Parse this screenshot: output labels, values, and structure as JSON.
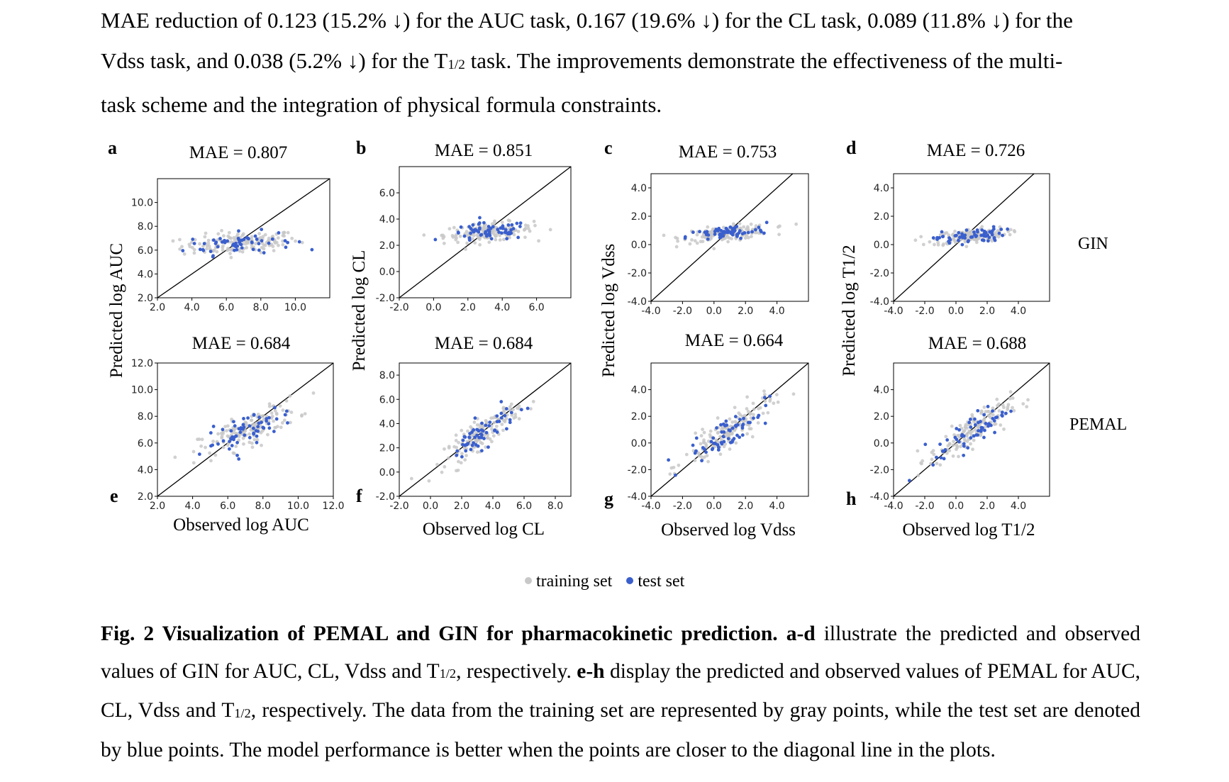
{
  "intro": {
    "l1": "MAE reduction of 0.123 (15.2% ↓) for the AUC task, 0.167 (19.6% ↓) for the CL task, 0.089 (11.8% ↓) for the",
    "l2a": "Vdss task, and 0.038 (5.2% ↓) for the T",
    "l2sub": "1/2",
    "l2b": " task. The improvements demonstrate the effectiveness of the multi-",
    "l3": "task scheme and the integration of physical formula constraints."
  },
  "legend": {
    "training": "training set",
    "test": "test set",
    "training_color": "#c8c8c8",
    "test_color": "#3a5fcd"
  },
  "row_labels": {
    "top": "GIN",
    "bottom": "PEMAL"
  },
  "caption": {
    "b1": "Fig. 2 Visualization of PEMAL and GIN for pharmacokinetic prediction.",
    "b2": "a-d",
    "t1": " illustrate the predicted and observed values of GIN for AUC, CL, Vdss and T",
    "sub1": "1/2",
    "t2": ", respectively. ",
    "b3": "e-h",
    "t3": " display the predicted and observed values of PEMAL for AUC, CL, Vdss and T",
    "sub2": "1/2",
    "t4": ", respectively. The data from the training set are represented by gray points, while the test set are denoted by blue points. The model performance is better when the points are closer to the diagonal line in the plots."
  },
  "chart_data": [
    {
      "type": "scatter",
      "panel": "a",
      "model": "GIN",
      "title": "MAE = 0.807",
      "xlabel": "",
      "ylabel": "Predicted log AUC",
      "xlim": [
        2.0,
        12.0
      ],
      "ylim": [
        2.0,
        12.0
      ],
      "xticks": [
        "2.0",
        "4.0",
        "6.0",
        "8.0",
        "10.0"
      ],
      "yticks": [
        "2.0",
        "4.0",
        "6.0",
        "8.0",
        "10.0"
      ],
      "center": [
        6.8,
        6.6
      ],
      "spread": [
        1.7,
        0.45
      ],
      "slope": 0.08
    },
    {
      "type": "scatter",
      "panel": "b",
      "model": "GIN",
      "title": "MAE = 0.851",
      "xlabel": "",
      "ylabel": "Predicted log CL",
      "xlim": [
        -2.0,
        8.0
      ],
      "ylim": [
        -2.0,
        8.0
      ],
      "xticks": [
        "-2.0",
        "0.0",
        "2.0",
        "4.0",
        "6.0"
      ],
      "yticks": [
        "-2.0",
        "0.0",
        "2.0",
        "4.0",
        "6.0"
      ],
      "center": [
        3.2,
        3.0
      ],
      "spread": [
        1.3,
        0.35
      ],
      "slope": 0.08
    },
    {
      "type": "scatter",
      "panel": "c",
      "model": "GIN",
      "title": "MAE = 0.753",
      "xlabel": "",
      "ylabel": "Predicted log Vdss",
      "xlim": [
        -4.0,
        6.0
      ],
      "ylim": [
        -4.0,
        5.0
      ],
      "xticks": [
        "-4.0",
        "-2.0",
        "0.0",
        "2.0",
        "4.0"
      ],
      "yticks": [
        "-4.0",
        "-2.0",
        "0.0",
        "2.0",
        "4.0"
      ],
      "center": [
        0.8,
        0.8
      ],
      "spread": [
        1.4,
        0.25
      ],
      "slope": 0.1
    },
    {
      "type": "scatter",
      "panel": "d",
      "model": "GIN",
      "title": "MAE = 0.726",
      "xlabel": "",
      "ylabel": "Predicted log T1/2",
      "xlim": [
        -4.0,
        6.0
      ],
      "ylim": [
        -4.0,
        5.0
      ],
      "xticks": [
        "-4.0",
        "-2.0",
        "0.0",
        "2.0",
        "4.0"
      ],
      "yticks": [
        "-4.0",
        "-2.0",
        "0.0",
        "2.0",
        "4.0"
      ],
      "center": [
        0.9,
        0.6
      ],
      "spread": [
        1.2,
        0.25
      ],
      "slope": 0.1
    },
    {
      "type": "scatter",
      "panel": "e",
      "model": "PEMAL",
      "title": "MAE = 0.684",
      "xlabel": "Observed log AUC",
      "ylabel": "",
      "xlim": [
        2.0,
        12.0
      ],
      "ylim": [
        2.0,
        12.0
      ],
      "xticks": [
        "2.0",
        "4.0",
        "6.0",
        "8.0",
        "10.0",
        "12.0"
      ],
      "yticks": [
        "2.0",
        "4.0",
        "6.0",
        "8.0",
        "10.0",
        "12.0"
      ],
      "center": [
        7.2,
        7.0
      ],
      "spread": [
        1.4,
        0.6
      ],
      "slope": 0.55
    },
    {
      "type": "scatter",
      "panel": "f",
      "model": "PEMAL",
      "title": "MAE = 0.684",
      "xlabel": "Observed log CL",
      "ylabel": "",
      "xlim": [
        -2.0,
        9.0
      ],
      "ylim": [
        -2.0,
        9.0
      ],
      "xticks": [
        "-2.0",
        "0.0",
        "2.0",
        "4.0",
        "6.0",
        "8.0"
      ],
      "yticks": [
        "-2.0",
        "0.0",
        "2.0",
        "4.0",
        "6.0",
        "8.0"
      ],
      "center": [
        3.3,
        3.2
      ],
      "spread": [
        1.2,
        0.6
      ],
      "slope": 0.85
    },
    {
      "type": "scatter",
      "panel": "g",
      "model": "PEMAL",
      "title": "MAE = 0.664",
      "xlabel": "Observed log Vdss",
      "ylabel": "",
      "xlim": [
        -4.0,
        6.0
      ],
      "ylim": [
        -4.0,
        6.0
      ],
      "xticks": [
        "-4.0",
        "-2.0",
        "0.0",
        "2.0",
        "4.0"
      ],
      "yticks": [
        "-4.0",
        "-2.0",
        "0.0",
        "2.0",
        "4.0"
      ],
      "center": [
        0.9,
        0.8
      ],
      "spread": [
        1.4,
        0.6
      ],
      "slope": 0.75
    },
    {
      "type": "scatter",
      "panel": "h",
      "model": "PEMAL",
      "title": "MAE = 0.688",
      "xlabel": "Observed log T1/2",
      "ylabel": "",
      "xlim": [
        -4.0,
        6.0
      ],
      "ylim": [
        -4.0,
        6.0
      ],
      "xticks": [
        "-4.0",
        "-2.0",
        "0.0",
        "2.0",
        "4.0"
      ],
      "yticks": [
        "-4.0",
        "-2.0",
        "0.0",
        "2.0",
        "4.0"
      ],
      "center": [
        0.9,
        0.8
      ],
      "spread": [
        1.3,
        0.6
      ],
      "slope": 0.7
    }
  ]
}
